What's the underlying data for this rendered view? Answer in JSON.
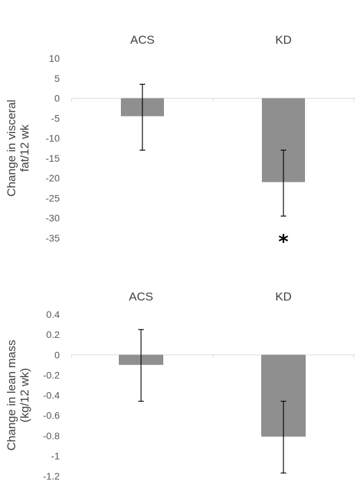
{
  "chart_data": [
    {
      "type": "bar",
      "categories": [
        "ACS",
        "KD"
      ],
      "values": [
        -4.5,
        -21.0
      ],
      "error_low": [
        -13.0,
        -29.5
      ],
      "error_high": [
        3.5,
        -13.0
      ],
      "ylabel_lines": [
        "Change in visceral",
        "fat/12 wk"
      ],
      "ylim": [
        -35,
        10
      ],
      "yticks": [
        "10",
        "5",
        "0",
        "-5",
        "-10",
        "-15",
        "-20",
        "-25",
        "-30",
        "-35"
      ],
      "annotations": [
        {
          "category": "KD",
          "text": "*"
        }
      ],
      "bar_color": "#8f8f8f",
      "grid": false
    },
    {
      "type": "bar",
      "categories": [
        "ACS",
        "KD"
      ],
      "values": [
        -0.1,
        -0.81
      ],
      "error_low": [
        -0.46,
        -1.17
      ],
      "error_high": [
        0.25,
        -0.46
      ],
      "ylabel_lines": [
        "Change in lean mass",
        "(kg/12 wk)"
      ],
      "ylim": [
        -1.2,
        0.4
      ],
      "yticks": [
        "0.4",
        "0.2",
        "0",
        "-0.2",
        "-0.4",
        "-0.6",
        "-0.8",
        "-1",
        "-1.2"
      ],
      "annotations": [],
      "bar_color": "#8f8f8f",
      "grid": false
    }
  ]
}
